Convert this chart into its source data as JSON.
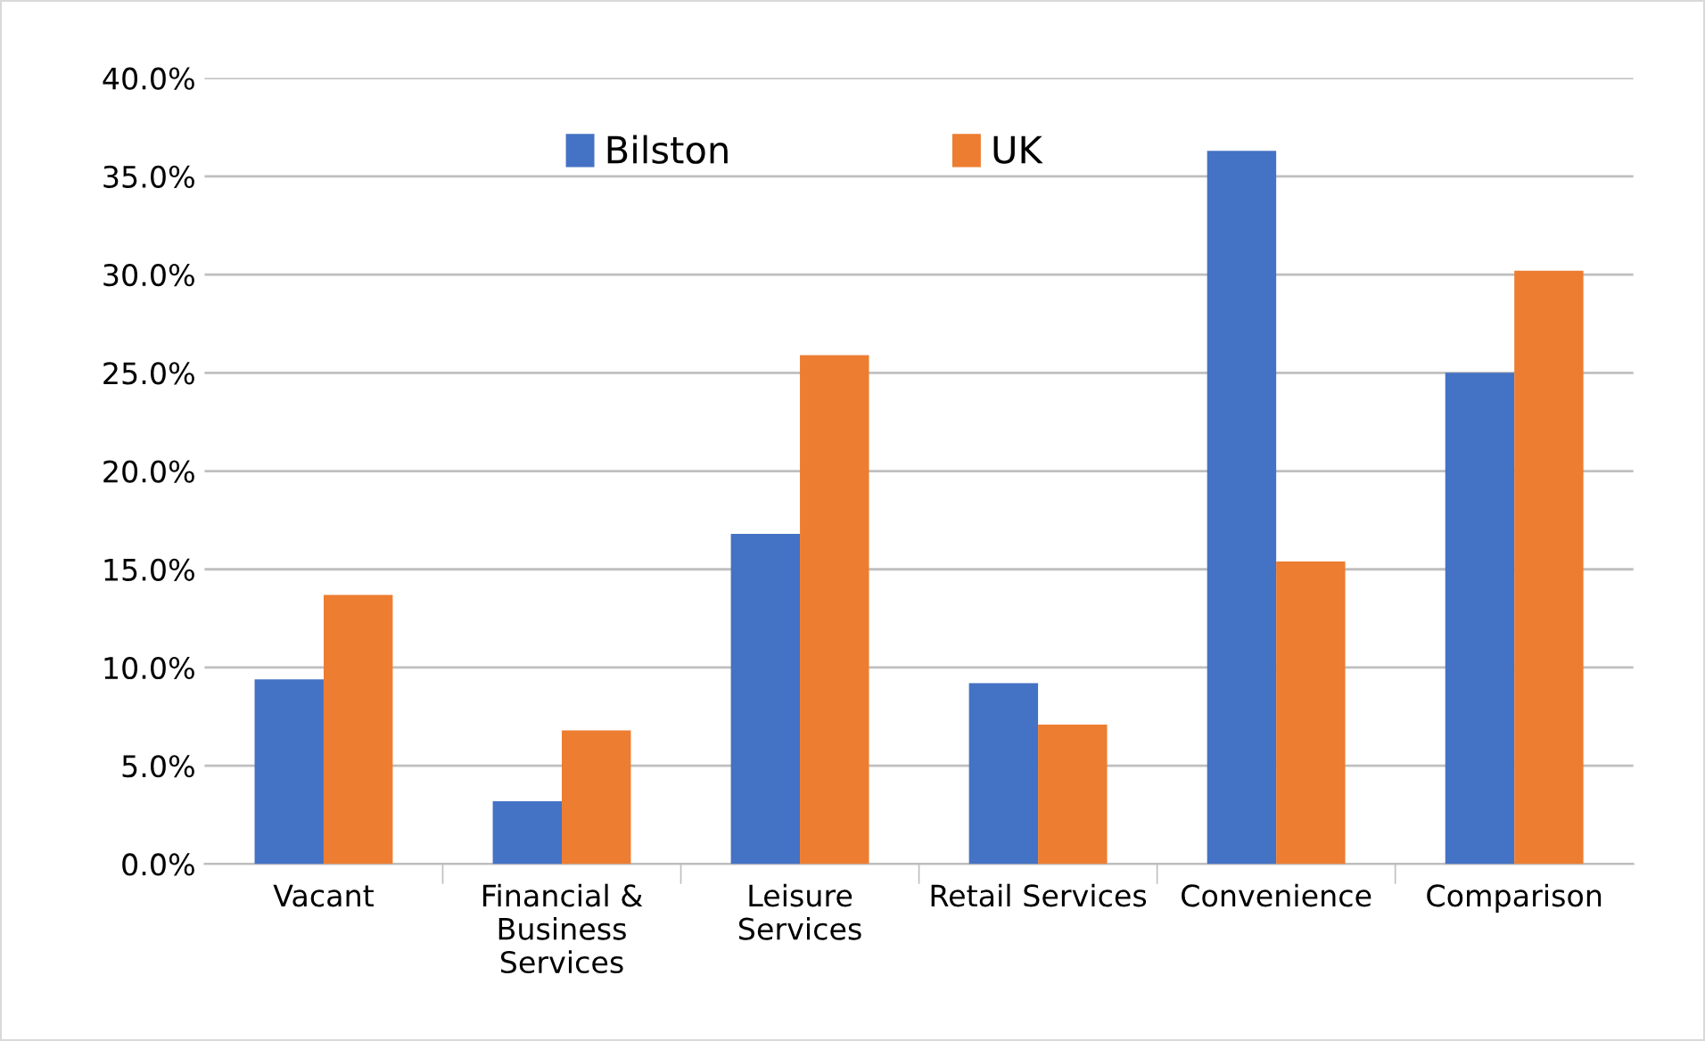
{
  "chart_data": {
    "type": "bar",
    "categories": [
      "Vacant",
      "Financial &\nBusiness\nServices",
      "Leisure\nServices",
      "Retail Services",
      "Convenience",
      "Comparison"
    ],
    "series": [
      {
        "name": "Bilston",
        "color": "#4472c4",
        "values": [
          9.4,
          3.2,
          16.8,
          9.2,
          36.3,
          25.0
        ]
      },
      {
        "name": "UK",
        "color": "#ed7d31",
        "values": [
          13.7,
          6.8,
          25.9,
          7.1,
          15.4,
          30.2
        ]
      }
    ],
    "ylim": [
      0,
      40
    ],
    "yticks": [
      {
        "value": 0,
        "label": "0.0%"
      },
      {
        "value": 5,
        "label": "5.0%"
      },
      {
        "value": 10,
        "label": "10.0%"
      },
      {
        "value": 15,
        "label": "15.0%"
      },
      {
        "value": 20,
        "label": "20.0%"
      },
      {
        "value": 25,
        "label": "25.0%"
      },
      {
        "value": 30,
        "label": "30.0%"
      },
      {
        "value": 35,
        "label": "35.0%"
      },
      {
        "value": 40,
        "label": "40.0%"
      }
    ],
    "grid": "y",
    "legend": "top"
  }
}
